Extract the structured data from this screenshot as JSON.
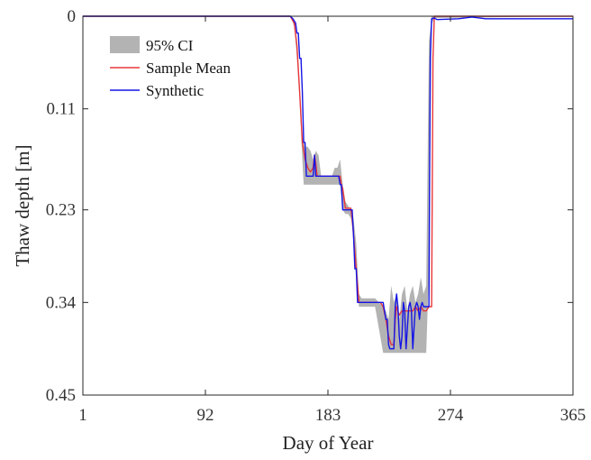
{
  "chart_data": {
    "type": "line",
    "xlabel": "Day of Year",
    "ylabel": "Thaw depth [m]",
    "xlim": [
      1,
      365
    ],
    "ylim": [
      0,
      0.45
    ],
    "y_reversed": true,
    "xticks": [
      1,
      92,
      183,
      274,
      365
    ],
    "yticks": [
      0,
      0.11,
      0.23,
      0.34,
      0.45
    ],
    "xtick_labels": [
      "1",
      "92",
      "183",
      "274",
      "365"
    ],
    "ytick_labels": [
      "0",
      "0.11",
      "0.23",
      "0.34",
      "0.45"
    ],
    "legend_position": "top-left",
    "grid": false,
    "series": [
      {
        "name": "95% CI",
        "kind": "band",
        "color": "#b3b3b3",
        "x": [
          1,
          155,
          158,
          160,
          162,
          164,
          165,
          166,
          168,
          170,
          172,
          174,
          176,
          178,
          180,
          182,
          184,
          186,
          188,
          190,
          192,
          194,
          196,
          198,
          200,
          202,
          204,
          206,
          208,
          212,
          218,
          224,
          226,
          228,
          230,
          232,
          234,
          236,
          238,
          240,
          242,
          244,
          246,
          248,
          250,
          252,
          254,
          256,
          258,
          260,
          262,
          264,
          365
        ],
        "lower": [
          0,
          0,
          0.005,
          0.03,
          0.08,
          0.14,
          0.15,
          0.155,
          0.155,
          0.16,
          0.17,
          0.16,
          0.165,
          0.19,
          0.19,
          0.19,
          0.19,
          0.19,
          0.18,
          0.18,
          0.17,
          0.2,
          0.22,
          0.225,
          0.23,
          0.24,
          0.27,
          0.33,
          0.335,
          0.335,
          0.335,
          0.345,
          0.35,
          0.36,
          0.32,
          0.34,
          0.33,
          0.36,
          0.33,
          0.32,
          0.35,
          0.33,
          0.32,
          0.34,
          0.33,
          0.31,
          0.33,
          0.32,
          0.03,
          0.0,
          0.0,
          0.0,
          0
        ],
        "upper": [
          0,
          0,
          0.012,
          0.05,
          0.1,
          0.17,
          0.2,
          0.2,
          0.2,
          0.2,
          0.2,
          0.2,
          0.2,
          0.2,
          0.2,
          0.2,
          0.2,
          0.2,
          0.2,
          0.2,
          0.2,
          0.23,
          0.235,
          0.235,
          0.24,
          0.26,
          0.3,
          0.345,
          0.345,
          0.345,
          0.345,
          0.4,
          0.4,
          0.4,
          0.4,
          0.4,
          0.4,
          0.4,
          0.4,
          0.4,
          0.4,
          0.4,
          0.4,
          0.4,
          0.4,
          0.4,
          0.4,
          0.4,
          0.3,
          0.01,
          0.002,
          0.002,
          0
        ]
      },
      {
        "name": "Sample Mean",
        "kind": "line",
        "color": "#e8363a",
        "x": [
          1,
          155,
          158,
          160,
          162,
          164,
          165,
          166,
          167,
          168,
          170,
          172,
          173,
          174,
          175,
          176,
          178,
          180,
          182,
          186,
          188,
          190,
          192,
          193,
          194,
          196,
          198,
          200,
          201,
          202,
          204,
          206,
          208,
          212,
          218,
          222,
          224,
          226,
          228,
          230,
          232,
          233,
          234,
          236,
          238,
          240,
          242,
          244,
          246,
          248,
          250,
          252,
          254,
          256,
          258,
          260,
          261,
          262,
          365
        ],
        "y": [
          0,
          0,
          0.008,
          0.035,
          0.09,
          0.15,
          0.16,
          0.17,
          0.175,
          0.18,
          0.185,
          0.18,
          0.165,
          0.175,
          0.19,
          0.19,
          0.19,
          0.19,
          0.19,
          0.19,
          0.19,
          0.19,
          0.19,
          0.2,
          0.205,
          0.228,
          0.228,
          0.228,
          0.24,
          0.26,
          0.3,
          0.34,
          0.34,
          0.34,
          0.34,
          0.34,
          0.345,
          0.36,
          0.38,
          0.39,
          0.39,
          0.36,
          0.345,
          0.355,
          0.35,
          0.35,
          0.35,
          0.35,
          0.35,
          0.345,
          0.35,
          0.345,
          0.35,
          0.35,
          0.345,
          0.345,
          0.05,
          0.0,
          0
        ]
      },
      {
        "name": "Synthetic",
        "kind": "line",
        "color": "#1515e6",
        "x": [
          1,
          155,
          157,
          159,
          160,
          161,
          162,
          163,
          164,
          165,
          166,
          167,
          168,
          169,
          172,
          173,
          174,
          175,
          176,
          177,
          186,
          187,
          190,
          191,
          192,
          193,
          194,
          195,
          196,
          198,
          200,
          201,
          202,
          203,
          204,
          205,
          206,
          207,
          212,
          218,
          222,
          224,
          226,
          227,
          228,
          229,
          230,
          232,
          233,
          234,
          235,
          236,
          237,
          238,
          239,
          240,
          241,
          242,
          243,
          244,
          245,
          246,
          247,
          248,
          249,
          250,
          251,
          252,
          253,
          254,
          255,
          256,
          257,
          258,
          259,
          260,
          262,
          264,
          280,
          290,
          300,
          365
        ],
        "y": [
          0,
          0,
          0.003,
          0.008,
          0.02,
          0.02,
          0.05,
          0.05,
          0.09,
          0.15,
          0.15,
          0.19,
          0.19,
          0.19,
          0.19,
          0.165,
          0.19,
          0.19,
          0.19,
          0.19,
          0.19,
          0.19,
          0.19,
          0.19,
          0.2,
          0.2,
          0.23,
          0.23,
          0.23,
          0.23,
          0.23,
          0.23,
          0.26,
          0.3,
          0.3,
          0.34,
          0.34,
          0.34,
          0.34,
          0.34,
          0.34,
          0.34,
          0.36,
          0.36,
          0.39,
          0.395,
          0.395,
          0.395,
          0.345,
          0.33,
          0.345,
          0.38,
          0.395,
          0.38,
          0.34,
          0.35,
          0.395,
          0.37,
          0.345,
          0.34,
          0.35,
          0.395,
          0.37,
          0.345,
          0.34,
          0.345,
          0.36,
          0.345,
          0.34,
          0.345,
          0.345,
          0.345,
          0.345,
          0.345,
          0.05,
          0.003,
          0.002,
          0.004,
          0.003,
          0.001,
          0.003,
          0.003
        ]
      }
    ]
  }
}
